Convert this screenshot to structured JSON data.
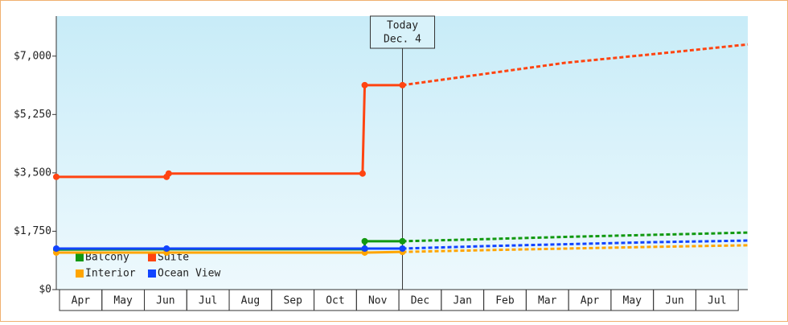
{
  "chart_data": {
    "type": "line",
    "categories": [
      "Apr",
      "May",
      "Jun",
      "Jul",
      "Aug",
      "Sep",
      "Oct",
      "Nov",
      "Dec",
      "Jan",
      "Feb",
      "Mar",
      "Apr",
      "May",
      "Jun",
      "Jul"
    ],
    "xlim": [
      0,
      16.3
    ],
    "ylim": [
      0,
      8200
    ],
    "yticks": [
      {
        "value": 0,
        "label": "$0"
      },
      {
        "value": 1750,
        "label": "$1,750"
      },
      {
        "value": 3500,
        "label": "$3,500"
      },
      {
        "value": 5250,
        "label": "$5,250"
      },
      {
        "value": 7000,
        "label": "$7,000"
      }
    ],
    "annotation": {
      "x": 8.16,
      "lines": [
        "Today",
        "Dec. 4"
      ]
    },
    "series": [
      {
        "name": "Balcony",
        "color": "#119911",
        "x": [
          0,
          2.6,
          7.27,
          7.27,
          8.16
        ],
        "values": [
          1200,
          1210,
          1210,
          1450,
          1450
        ],
        "projected": {
          "x": [
            8.16,
            10,
            12,
            14,
            16.3
          ],
          "values": [
            1450,
            1510,
            1580,
            1640,
            1710
          ]
        }
      },
      {
        "name": "Suite",
        "color": "#ff4411",
        "x": [
          0,
          2.6,
          2.65,
          7.22,
          7.27,
          8.16
        ],
        "values": [
          3380,
          3380,
          3480,
          3480,
          6130,
          6130
        ],
        "projected": {
          "x": [
            8.16,
            10,
            12,
            14,
            16.3
          ],
          "values": [
            6130,
            6450,
            6800,
            7050,
            7350
          ]
        }
      },
      {
        "name": "Interior",
        "color": "#ffa500",
        "x": [
          0,
          2.6,
          7.27,
          8.16
        ],
        "values": [
          1110,
          1110,
          1110,
          1130
        ],
        "projected": {
          "x": [
            8.16,
            10,
            12,
            14,
            16.3
          ],
          "values": [
            1130,
            1180,
            1230,
            1280,
            1330
          ]
        }
      },
      {
        "name": "Ocean View",
        "color": "#1144ff",
        "x": [
          0,
          2.6,
          7.27,
          8.16
        ],
        "values": [
          1230,
          1230,
          1230,
          1230
        ],
        "projected": {
          "x": [
            8.16,
            10,
            12,
            14,
            16.3
          ],
          "values": [
            1230,
            1300,
            1360,
            1420,
            1470
          ]
        }
      }
    ]
  }
}
